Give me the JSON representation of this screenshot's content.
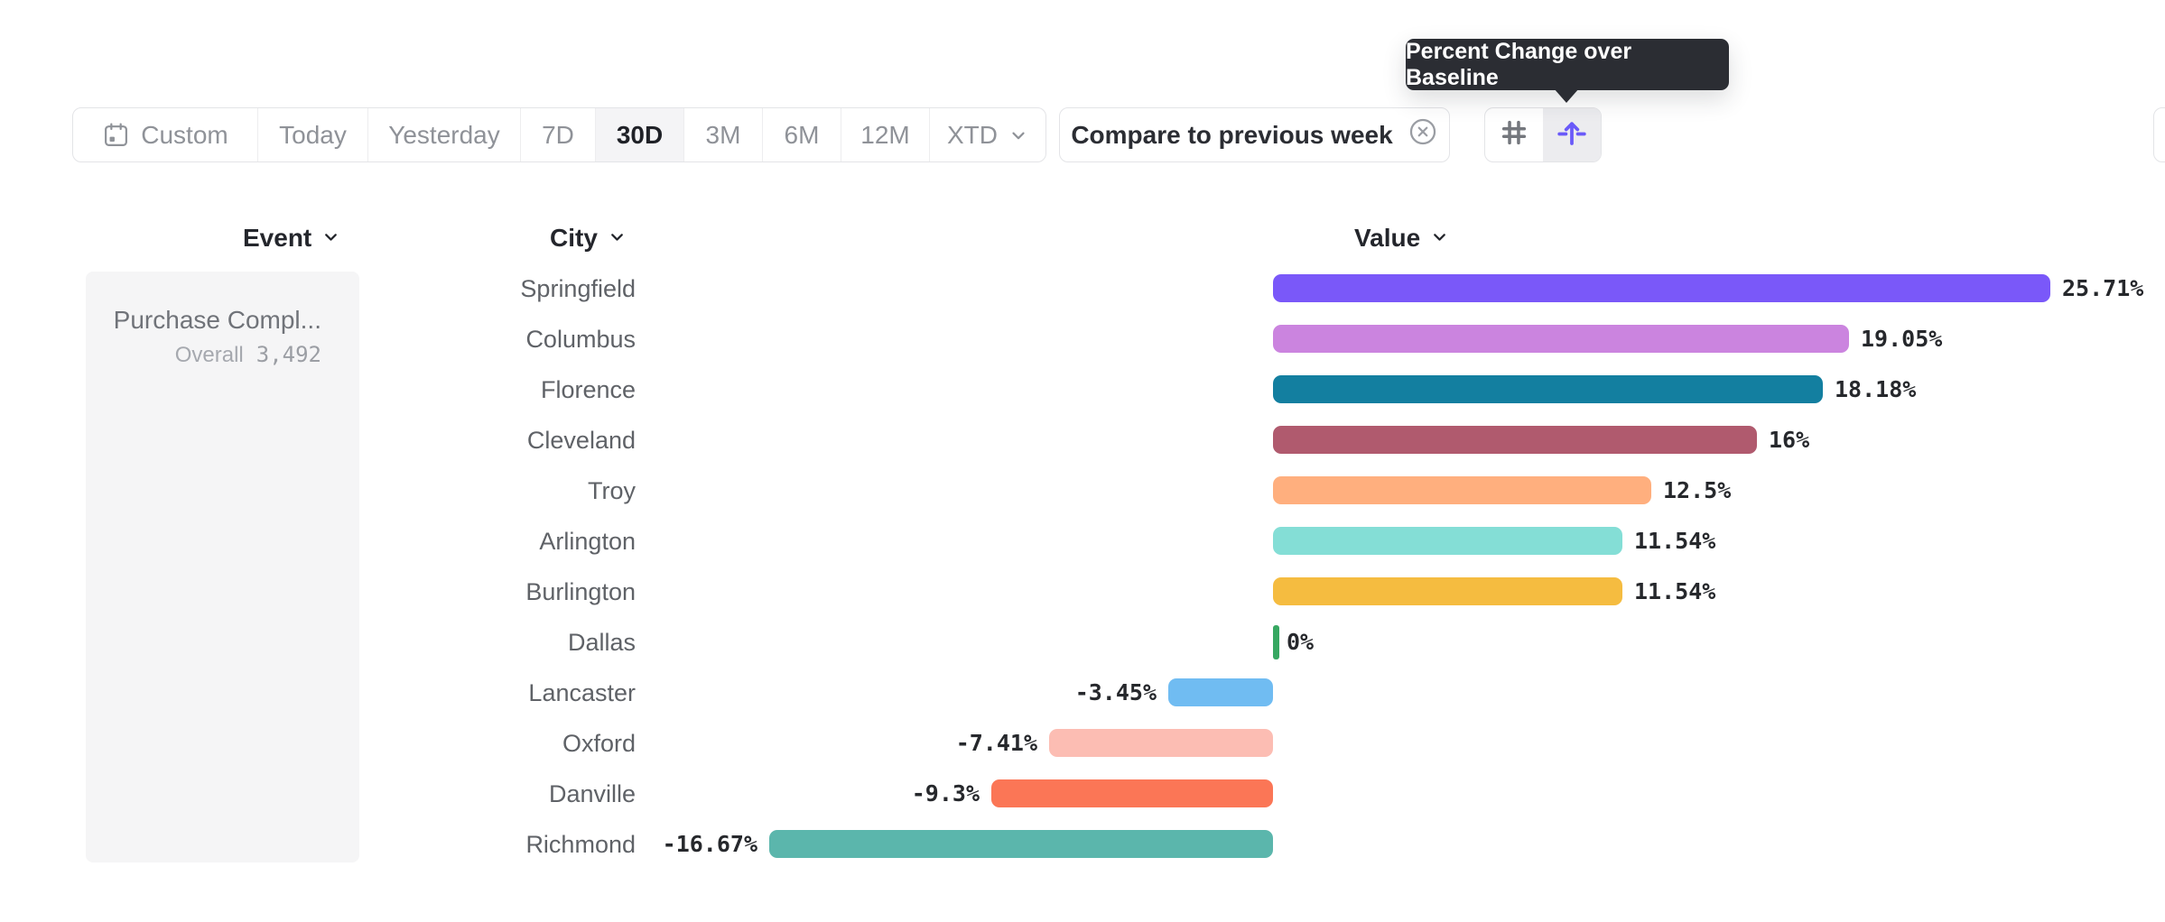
{
  "tooltip": {
    "text": "Percent Change over Baseline"
  },
  "toolbar": {
    "date_presets": [
      "Custom",
      "Today",
      "Yesterday",
      "7D",
      "30D",
      "3M",
      "6M",
      "12M",
      "XTD"
    ],
    "active_preset": "30D",
    "compare_chip": {
      "label": "Compare to previous week"
    },
    "view_toggle": {
      "number_view": {
        "icon": "hash-icon",
        "active": false
      },
      "percent_view": {
        "icon": "percent-change-baseline-icon",
        "active": true
      }
    }
  },
  "columns": {
    "event": "Event",
    "city": "City",
    "value": "Value"
  },
  "event_panel": {
    "name": "Purchase Compl...",
    "overall_label": "Overall",
    "overall_value": "3,492"
  },
  "chart_data": {
    "type": "bar",
    "orientation": "horizontal",
    "title": "Percent Change over Baseline",
    "unit": "%",
    "baseline": 0,
    "xlim": [
      -16.67,
      25.71
    ],
    "grid": false,
    "legend": false,
    "categories": [
      "Springfield",
      "Columbus",
      "Florence",
      "Cleveland",
      "Troy",
      "Arlington",
      "Burlington",
      "Dallas",
      "Lancaster",
      "Oxford",
      "Danville",
      "Richmond"
    ],
    "values": [
      25.71,
      19.05,
      18.18,
      16,
      12.5,
      11.54,
      11.54,
      0,
      -3.45,
      -7.41,
      -9.3,
      -16.67
    ],
    "value_labels": [
      "25.71%",
      "19.05%",
      "18.18%",
      "16%",
      "12.5%",
      "11.54%",
      "11.54%",
      "0%",
      "-3.45%",
      "-7.41%",
      "-9.3%",
      "-16.67%"
    ],
    "bar_colors": [
      "#7A58F9",
      "#CB84DF",
      "#137FA0",
      "#B05A6E",
      "#FFAF7E",
      "#84DED6",
      "#F5BC40",
      "#37A862",
      "#70BCF2",
      "#FCBDB3",
      "#FB7656",
      "#5BB6AC"
    ],
    "zero_tick_color": "#37A862"
  },
  "theme": {
    "accent": "#6A5AF9",
    "tooltip_bg": "#2B2D33",
    "border": "#E3E4E7",
    "muted_text": "#8F9298",
    "dark_text": "#24262C"
  }
}
